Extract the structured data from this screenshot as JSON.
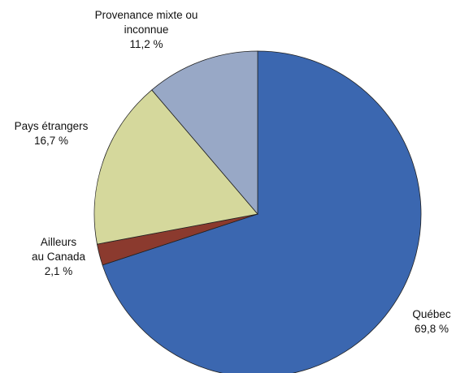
{
  "chart_data": {
    "type": "pie",
    "categories": [
      "Québec",
      "Ailleurs\nau Canada",
      "Pays étrangers",
      "Provenance mixte ou\ninconnue"
    ],
    "values": [
      69.8,
      2.1,
      16.7,
      11.2
    ],
    "value_labels": [
      "69,8 %",
      "2,1 %",
      "16,7 %",
      "11,2 %"
    ],
    "colors": [
      "#3b67b0",
      "#8b3a2e",
      "#d5d89c",
      "#98a8c6"
    ]
  }
}
